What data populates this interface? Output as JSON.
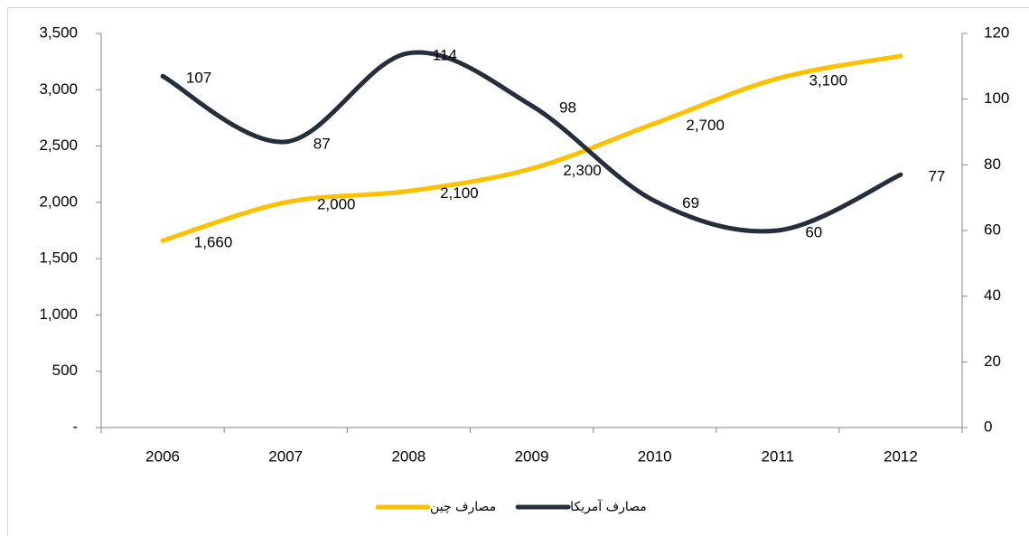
{
  "chart_data": {
    "type": "line",
    "categories": [
      "2006",
      "2007",
      "2008",
      "2009",
      "2010",
      "2011",
      "2012"
    ],
    "series": [
      {
        "name": "مصارف چین",
        "color": "#FFC000",
        "values": [
          1660,
          2000,
          2100,
          2300,
          2700,
          3100,
          3300
        ],
        "value_labels": [
          "1,660",
          "2,000",
          "2,100",
          "2,300",
          "2,700",
          "3,100",
          null
        ]
      },
      {
        "name": "مصارف آمریکا",
        "color": "#262E3B",
        "axis": "y2",
        "values": [
          107,
          87,
          114,
          98,
          69,
          60,
          77
        ]
      }
    ],
    "ylim": [
      0,
      3500
    ],
    "yticks": [
      {
        "value": 0,
        "label": "-"
      },
      500,
      {
        "value": 1000,
        "label": "1,000"
      },
      {
        "value": 1500,
        "label": "1,500"
      },
      {
        "value": 2000,
        "label": "2,000"
      },
      {
        "value": 2500,
        "label": "2,500"
      },
      {
        "value": 3000,
        "label": "3,000"
      },
      {
        "value": 3500,
        "label": "3,500"
      }
    ],
    "y2lim": [
      0,
      120
    ],
    "y2ticks": [
      0,
      20,
      40,
      60,
      80,
      100,
      120
    ],
    "legend": "bottom"
  }
}
